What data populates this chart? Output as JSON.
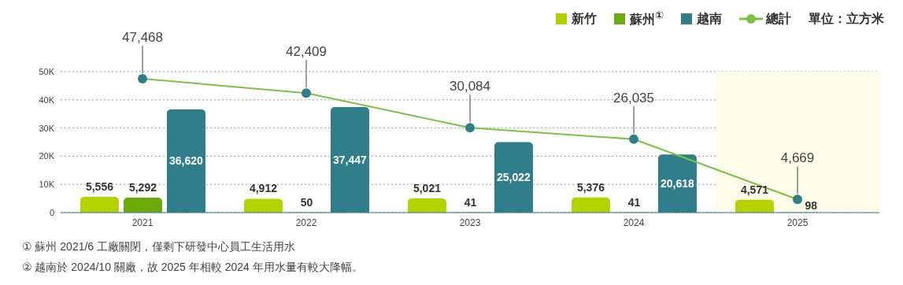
{
  "chart_data": {
    "type": "bar",
    "categories": [
      "2021",
      "2022",
      "2023",
      "2024",
      "2025"
    ],
    "series": [
      {
        "name": "新竹",
        "color": "#b4d200",
        "values": [
          5556,
          4912,
          5021,
          5376,
          4571
        ],
        "value_labels": [
          "5,556",
          "4,912",
          "5,021",
          "5,376",
          "4,571"
        ]
      },
      {
        "name": "蘇州$^{①}$",
        "color": "#6aaa0a",
        "values": [
          5292,
          50,
          41,
          41,
          98
        ],
        "value_labels": [
          "5,292",
          "50",
          "41",
          "41",
          "98"
        ]
      },
      {
        "name": "越南",
        "color": "#2f7e89",
        "values": [
          36620,
          37447,
          25022,
          20618,
          null
        ],
        "value_labels": [
          "36,620",
          "37,447",
          "25,022",
          "20,618",
          null
        ]
      },
      {
        "name": "總計",
        "type": "line",
        "color": "#7cc242",
        "values": [
          47468,
          42409,
          30084,
          26035,
          4669
        ],
        "value_labels": [
          "47,468",
          "42,409",
          "30,084",
          "26,035",
          "4,669"
        ]
      }
    ],
    "ylim": [
      0,
      50000
    ],
    "yticks": [
      0,
      {
        "value": 10000,
        "label": "10K"
      },
      {
        "value": 20000,
        "label": "20K"
      },
      {
        "value": 30000,
        "label": "30K"
      },
      {
        "value": 40000,
        "label": "40K"
      },
      {
        "value": 50000,
        "label": "50K"
      }
    ],
    "grid": "y",
    "legend": "top right",
    "marker": "circle",
    "bands": [
      {
        "axis": "x",
        "from": "2025",
        "to": "2025",
        "color": "#fdfde9"
      }
    ],
    "annotations": [
      "單位：立方米",
      "①  蘇州 2021/6 工廠關閉，僅剩下研發中心員工生活用水",
      "②  越南於 2024/10 關廠，故 2025 年相較 2024 年用水量有較大降幅。"
    ]
  }
}
